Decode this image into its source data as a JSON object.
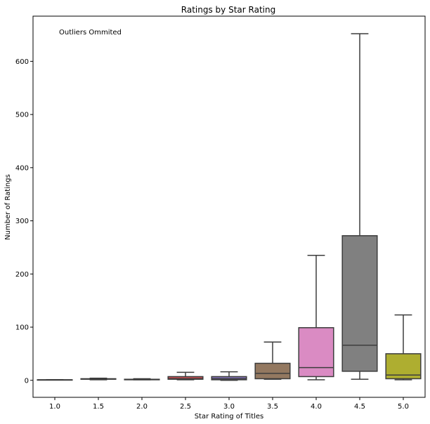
{
  "chart_data": {
    "type": "box",
    "title": "Ratings by Star Rating",
    "xlabel": "Star Rating of Titles",
    "ylabel": "Number of Ratings",
    "annotation": "Outliers Ommited",
    "ylim": [
      -32,
      685
    ],
    "yticks": [
      0,
      100,
      200,
      300,
      400,
      500,
      600
    ],
    "grid": false,
    "categories": [
      "1.0",
      "1.5",
      "2.0",
      "2.5",
      "3.0",
      "3.5",
      "4.0",
      "4.5",
      "5.0"
    ],
    "boxes": [
      {
        "category": "1.0",
        "whisker_low": 1,
        "q1": 1,
        "median": 1,
        "q3": 1,
        "whisker_high": 1,
        "color": "#3a74a8"
      },
      {
        "category": "1.5",
        "whisker_low": 1,
        "q1": 2,
        "median": 2,
        "q3": 3,
        "whisker_high": 4,
        "color": "#dd8452"
      },
      {
        "category": "2.0",
        "whisker_low": 1,
        "q1": 1,
        "median": 2,
        "q3": 2,
        "whisker_high": 3,
        "color": "#55a868"
      },
      {
        "category": "2.5",
        "whisker_low": 1,
        "q1": 2,
        "median": 3,
        "q3": 7,
        "whisker_high": 15,
        "color": "#c44e52"
      },
      {
        "category": "3.0",
        "whisker_low": 0,
        "q1": 1,
        "median": 3,
        "q3": 7,
        "whisker_high": 16,
        "color": "#8172b3"
      },
      {
        "category": "3.5",
        "whisker_low": 2,
        "q1": 3,
        "median": 13,
        "q3": 32,
        "whisker_high": 72,
        "color": "#937860"
      },
      {
        "category": "4.0",
        "whisker_low": 1,
        "q1": 7,
        "median": 24,
        "q3": 99,
        "whisker_high": 235,
        "color": "#da8bc3"
      },
      {
        "category": "4.5",
        "whisker_low": 2,
        "q1": 17,
        "median": 66,
        "q3": 272,
        "whisker_high": 652,
        "color": "#808080"
      },
      {
        "category": "5.0",
        "whisker_low": 1,
        "q1": 3,
        "median": 10,
        "q3": 50,
        "whisker_high": 123,
        "color": "#aeae30"
      }
    ]
  }
}
